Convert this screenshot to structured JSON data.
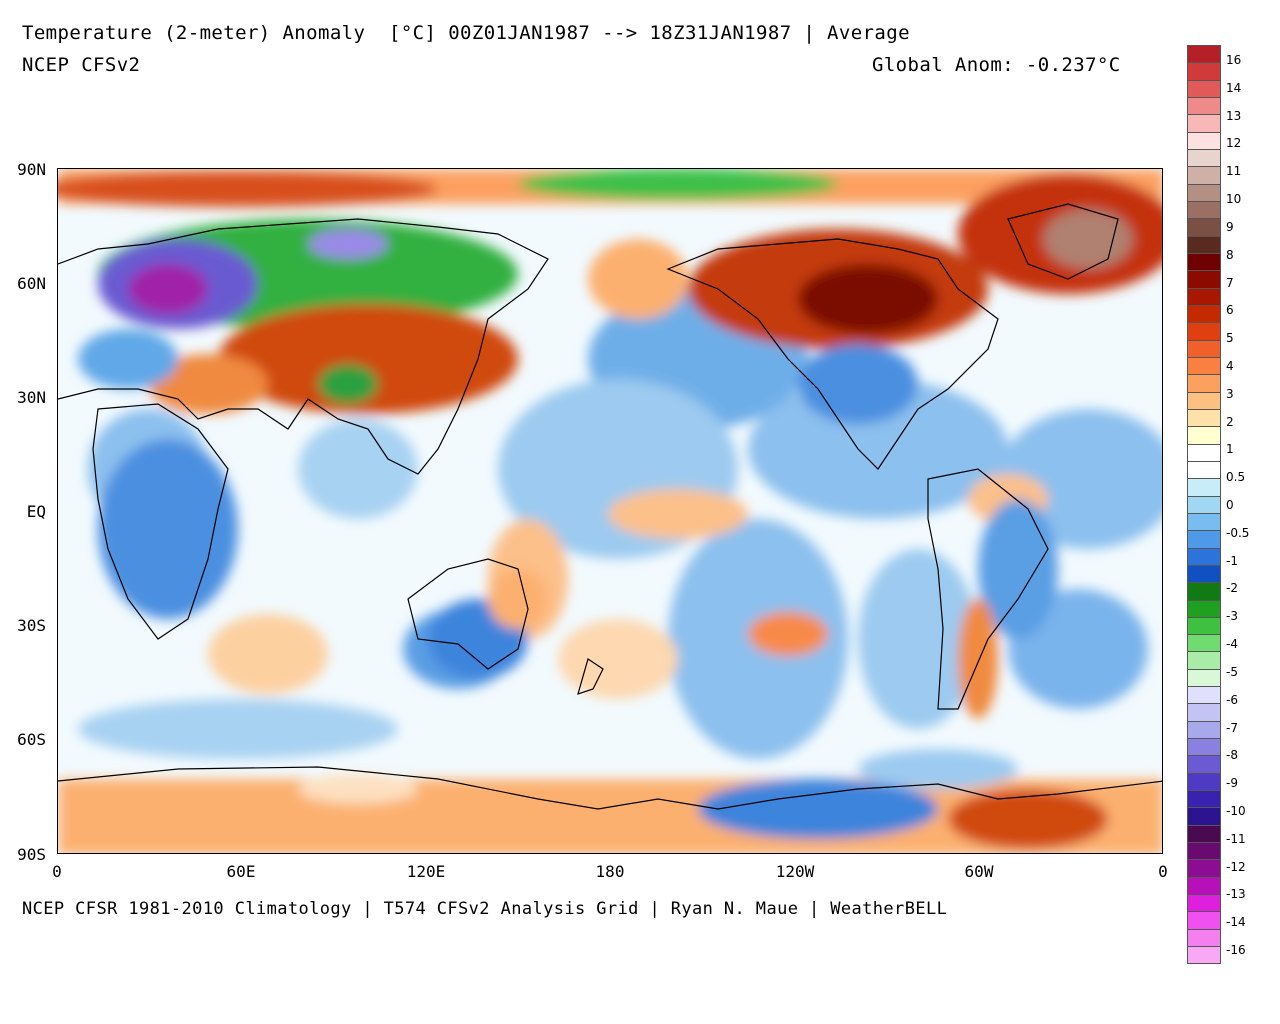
{
  "header": {
    "title": "Temperature (2-meter) Anomaly  [°C] 00Z01JAN1987 --> 18Z31JAN1987 | Average",
    "model": "NCEP CFSv2",
    "global_anom": "Global Anom: -0.237°C"
  },
  "footer": {
    "credits": "NCEP CFSR 1981-2010 Climatology | T574 CFSv2 Analysis Grid | Ryan N. Maue | WeatherBELL"
  },
  "axes": {
    "lat_labels": [
      "90N",
      "60N",
      "30N",
      "EQ",
      "30S",
      "60S",
      "90S"
    ],
    "lon_labels": [
      "0",
      "60E",
      "120E",
      "180",
      "120W",
      "60W",
      "0"
    ]
  },
  "colorbar": {
    "labels": [
      "16",
      "14",
      "13",
      "12",
      "11",
      "10",
      "9",
      "8",
      "7",
      "6",
      "5",
      "4",
      "3",
      "2",
      "1",
      "0.5",
      "0",
      "-0.5",
      "-1",
      "-2",
      "-3",
      "-4",
      "-5",
      "-6",
      "-7",
      "-8",
      "-9",
      "-10",
      "-11",
      "-12",
      "-13",
      "-14",
      "-16"
    ],
    "colors": [
      "#b52028",
      "#d03a3a",
      "#e05a5a",
      "#ee8a8a",
      "#f8b8b8",
      "#fde0e0",
      "#e8d4cc",
      "#cfb0a6",
      "#b48f84",
      "#9a7064",
      "#7a5044",
      "#5a2a1e",
      "#6e0000",
      "#8c0a00",
      "#a81800",
      "#c42a00",
      "#e04010",
      "#f0602a",
      "#f88040",
      "#fca060",
      "#fec080",
      "#fee0a8",
      "#ffffd0",
      "#ffffff",
      "#ffffff",
      "#c8ecf8",
      "#a0d8f4",
      "#78bcf0",
      "#4f9ae8",
      "#2c74dc",
      "#1050c0",
      "#127a12",
      "#20a020",
      "#40c040",
      "#70dc70",
      "#a8eca8",
      "#d8f8d8",
      "#e0e0fc",
      "#c4c4f4",
      "#a8a8ec",
      "#8a80e0",
      "#6c5ad2",
      "#4f3ac4",
      "#3a22b0",
      "#2c1490",
      "#4a0a50",
      "#6a0a70",
      "#8c0c94",
      "#b810b8",
      "#de20de",
      "#f050f0",
      "#f480f0",
      "#f8a8f4"
    ]
  }
}
